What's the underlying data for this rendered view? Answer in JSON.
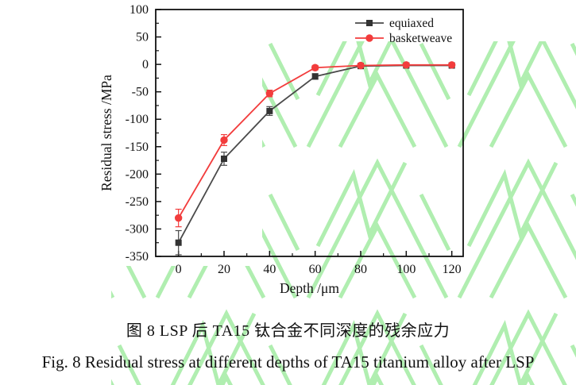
{
  "figure": {
    "caption_zh": "图 8 LSP 后 TA15 钛合金不同深度的残余应力",
    "caption_en": "Fig. 8 Residual stress at different depths of TA15 titanium alloy after LSP"
  },
  "watermark": {
    "color": "#a8eda8"
  },
  "chart_data": {
    "type": "line",
    "title": "",
    "xlabel": "Depth /μm",
    "ylabel": "Residual stress /MPa",
    "xlim": [
      -10,
      125
    ],
    "ylim": [
      -350,
      100
    ],
    "xticks": [
      0,
      20,
      40,
      60,
      80,
      100,
      120
    ],
    "yticks": [
      100,
      50,
      0,
      -50,
      -100,
      -150,
      -200,
      -250,
      -300,
      -350
    ],
    "x_minor_step": 10,
    "y_minor_step": 25,
    "grid": false,
    "legend_position": "top-right",
    "x": [
      0,
      20,
      40,
      60,
      80,
      100,
      120
    ],
    "series": [
      {
        "name": "equiaxed",
        "color": "#4a4a4a",
        "marker_color": "#333333",
        "marker": "square",
        "values": [
          -325,
          -172,
          -85,
          -22,
          -3,
          -2,
          -2
        ],
        "errors": [
          22,
          12,
          8,
          5,
          2,
          2,
          2
        ]
      },
      {
        "name": "basketweave",
        "color": "#f23c3c",
        "marker_color": "#f23c3c",
        "marker": "circle",
        "values": [
          -280,
          -138,
          -53,
          -6,
          -2,
          -1,
          -1
        ],
        "errors": [
          16,
          10,
          6,
          4,
          2,
          2,
          2
        ]
      }
    ]
  }
}
